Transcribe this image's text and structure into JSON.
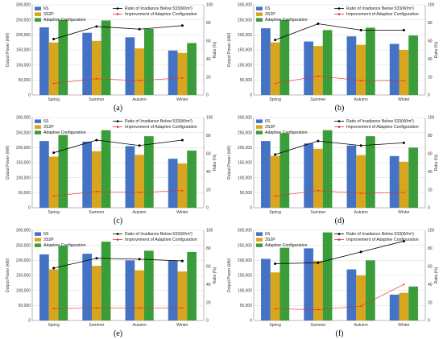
{
  "colors": {
    "6S": "#4472c4",
    "3S2P": "#d9a51f",
    "Adaptive": "#3a9d3a",
    "ratio_line": "#000000",
    "improvement_line": "#e0322e",
    "grid": "#d9d9d9",
    "axis": "#888888"
  },
  "chart_data": [
    {
      "type": "bar",
      "panel_label": "(a)",
      "categories": [
        "Spring",
        "Summer",
        "Autumn",
        "Winter"
      ],
      "series": [
        {
          "name": "6S",
          "axis": "left",
          "values": [
            225000,
            207000,
            192000,
            148000
          ]
        },
        {
          "name": "3S2P",
          "axis": "left",
          "values": [
            175000,
            180000,
            155000,
            140000
          ]
        },
        {
          "name": "Adaptive Configuration",
          "axis": "left",
          "values": [
            250000,
            248000,
            220000,
            173000
          ]
        }
      ],
      "lines": [
        {
          "name": "Ratio of Irradiance Below 533(W/m²)",
          "axis": "right",
          "values": [
            62,
            76,
            73,
            77
          ]
        },
        {
          "name": "Improvement of Adaptive Configuration",
          "axis": "right",
          "values": [
            13,
            18,
            16,
            19
          ]
        }
      ],
      "ylabel": "Output Power (kW)",
      "y2label": "Ratio (%)",
      "ylim": [
        0,
        300000
      ],
      "y2lim": [
        0,
        100
      ],
      "yticks": [
        "0",
        "50,000",
        "100,000",
        "150,000",
        "200,000",
        "250,000",
        "300,000"
      ],
      "y2ticks": [
        "0",
        "20",
        "40",
        "60",
        "80",
        "100"
      ],
      "grid": true,
      "legend": "top"
    },
    {
      "type": "bar",
      "panel_label": "(b)",
      "categories": [
        "Spring",
        "Summer",
        "Autumn",
        "Winter"
      ],
      "series": [
        {
          "name": "6S",
          "axis": "left",
          "values": [
            222000,
            178000,
            195000,
            170000
          ]
        },
        {
          "name": "3S2P",
          "axis": "left",
          "values": [
            175000,
            163000,
            167000,
            150000
          ]
        },
        {
          "name": "Adaptive Configuration",
          "axis": "left",
          "values": [
            250000,
            216000,
            224000,
            198000
          ]
        }
      ],
      "lines": [
        {
          "name": "Ratio of Irradiance Below 533(W/m²)",
          "axis": "right",
          "values": [
            61,
            79,
            72,
            72
          ]
        },
        {
          "name": "Improvement of Adaptive Configuration",
          "axis": "right",
          "values": [
            13,
            21,
            16,
            16
          ]
        }
      ],
      "ylabel": "Output Power (kW)",
      "y2label": "Ratio (%)",
      "ylim": [
        0,
        300000
      ],
      "y2lim": [
        0,
        100
      ],
      "yticks": [
        "0",
        "50,000",
        "100,000",
        "150,000",
        "200,000",
        "250,000",
        "300,000"
      ],
      "y2ticks": [
        "0",
        "20",
        "40",
        "60",
        "80",
        "100"
      ],
      "grid": true,
      "legend": "top"
    },
    {
      "type": "bar",
      "panel_label": "(c)",
      "categories": [
        "Spring",
        "Summer",
        "Autumn",
        "Winter"
      ],
      "series": [
        {
          "name": "6S",
          "axis": "left",
          "values": [
            222000,
            220000,
            205000,
            163000
          ]
        },
        {
          "name": "3S2P",
          "axis": "left",
          "values": [
            170000,
            188000,
            176000,
            147000
          ]
        },
        {
          "name": "Adaptive Configuration",
          "axis": "left",
          "values": [
            242000,
            258000,
            238000,
            190000
          ]
        }
      ],
      "lines": [
        {
          "name": "Ratio of Irradiance Below 533(W/m²)",
          "axis": "right",
          "values": [
            61,
            75,
            69,
            75
          ]
        },
        {
          "name": "Improvement of Adaptive Configuration",
          "axis": "right",
          "values": [
            13,
            18,
            17,
            19
          ]
        }
      ],
      "ylabel": "Output Power (kW)",
      "y2label": "Ratio (%)",
      "ylim": [
        0,
        300000
      ],
      "y2lim": [
        0,
        100
      ],
      "yticks": [
        "0",
        "50,000",
        "100,000",
        "150,000",
        "200,000",
        "250,000",
        "300,000"
      ],
      "y2ticks": [
        "0",
        "20",
        "40",
        "60",
        "80",
        "100"
      ],
      "grid": true,
      "legend": "top"
    },
    {
      "type": "bar",
      "panel_label": "(d)",
      "categories": [
        "Spring",
        "Summer",
        "Autumn",
        "Winter"
      ],
      "series": [
        {
          "name": "6S",
          "axis": "left",
          "values": [
            222000,
            214000,
            207000,
            172000
          ]
        },
        {
          "name": "3S2P",
          "axis": "left",
          "values": [
            173000,
            196000,
            175000,
            153000
          ]
        },
        {
          "name": "Adaptive Configuration",
          "axis": "left",
          "values": [
            248000,
            258000,
            238000,
            200000
          ]
        }
      ],
      "lines": [
        {
          "name": "Ratio of Irradiance Below 533(W/m²)",
          "axis": "right",
          "values": [
            59,
            74,
            69,
            72
          ]
        },
        {
          "name": "Improvement of Adaptive Configuration",
          "axis": "right",
          "values": [
            13,
            19,
            16,
            17
          ]
        }
      ],
      "ylabel": "Output Power (kW)",
      "y2label": "Ratio (%)",
      "ylim": [
        0,
        300000
      ],
      "y2lim": [
        0,
        100
      ],
      "yticks": [
        "0",
        "50,000",
        "100,000",
        "150,000",
        "200,000",
        "250,000",
        "300,000"
      ],
      "y2ticks": [
        "0",
        "20",
        "40",
        "60",
        "80",
        "100"
      ],
      "grid": true,
      "legend": "top"
    },
    {
      "type": "bar",
      "panel_label": "(e)",
      "categories": [
        "Spring",
        "Summer",
        "Autumn",
        "Winter"
      ],
      "series": [
        {
          "name": "6S",
          "axis": "left",
          "values": [
            220000,
            222000,
            200000,
            198000
          ]
        },
        {
          "name": "3S2P",
          "axis": "left",
          "values": [
            170000,
            182000,
            167000,
            163000
          ]
        },
        {
          "name": "Adaptive Configuration",
          "axis": "left",
          "values": [
            248000,
            262000,
            232000,
            228000
          ]
        }
      ],
      "lines": [
        {
          "name": "Ratio of Irradiance Below 533(W/m²)",
          "axis": "right",
          "values": [
            58,
            69,
            68,
            66
          ]
        },
        {
          "name": "Improvement of Adaptive Configuration",
          "axis": "right",
          "values": [
            13,
            14,
            14,
            14
          ]
        }
      ],
      "ylabel": "Output Power (kW)",
      "y2label": "Ratio (%)",
      "ylim": [
        0,
        300000
      ],
      "y2lim": [
        0,
        100
      ],
      "yticks": [
        "0",
        "50,000",
        "100,000",
        "150,000",
        "200,000",
        "250,000",
        "300,000"
      ],
      "y2ticks": [
        "0",
        "20",
        "40",
        "60",
        "80",
        "100"
      ],
      "grid": true,
      "legend": "top"
    },
    {
      "type": "bar",
      "panel_label": "(f)",
      "categories": [
        "Spring",
        "Summer",
        "Autumn",
        "Winter"
      ],
      "series": [
        {
          "name": "6S",
          "axis": "left",
          "values": [
            205000,
            240000,
            170000,
            86000
          ]
        },
        {
          "name": "3S2P",
          "axis": "left",
          "values": [
            160000,
            198000,
            150000,
            92000
          ]
        },
        {
          "name": "Adaptive Configuration",
          "axis": "left",
          "values": [
            242000,
            293000,
            200000,
            113000
          ]
        }
      ],
      "lines": [
        {
          "name": "Ratio of Irradiance Below 533(W/m²)",
          "axis": "right",
          "values": [
            63,
            64,
            76,
            88
          ]
        },
        {
          "name": "Improvement of Adaptive Configuration",
          "axis": "right",
          "values": [
            13,
            12,
            16,
            40
          ]
        }
      ],
      "ylabel": "Output Power (kW)",
      "y2label": "Ratio (%)",
      "ylim": [
        0,
        300000
      ],
      "y2lim": [
        0,
        100
      ],
      "yticks": [
        "0",
        "50,000",
        "100,000",
        "150,000",
        "200,000",
        "250,000",
        "300,000"
      ],
      "y2ticks": [
        "0",
        "20",
        "40",
        "60",
        "80",
        "100"
      ],
      "grid": true,
      "legend": "top"
    }
  ]
}
